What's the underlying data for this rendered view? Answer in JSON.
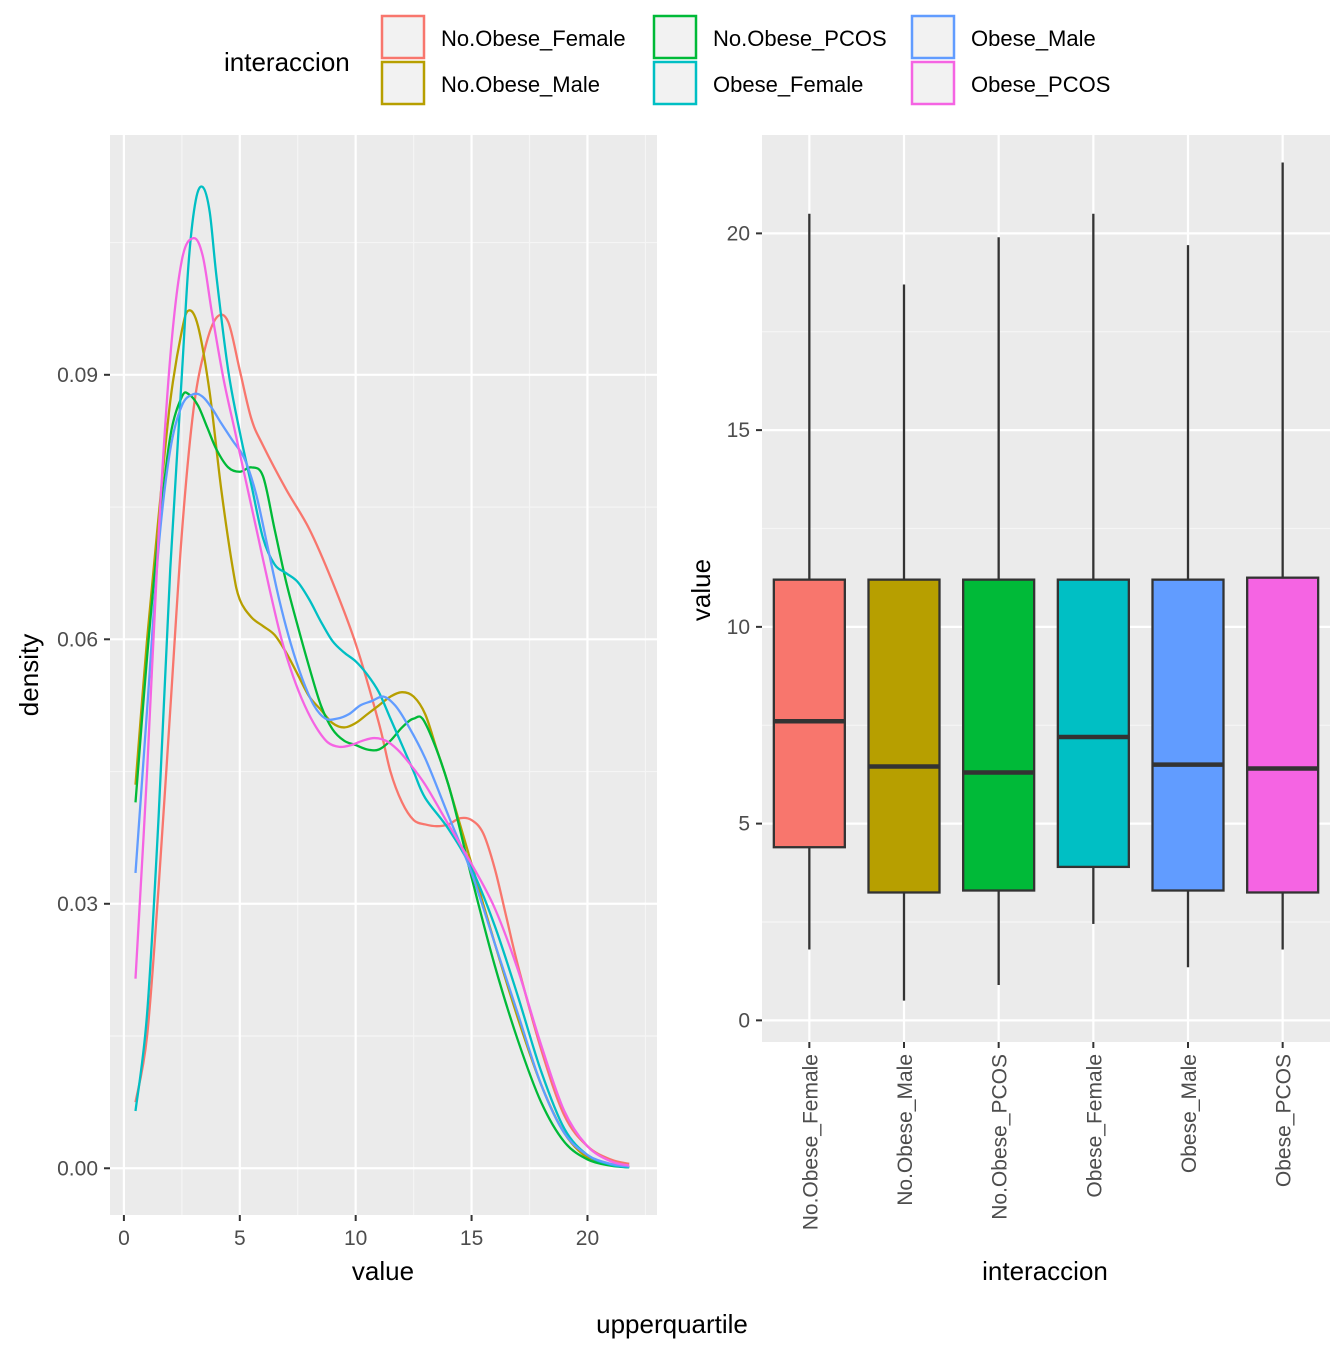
{
  "legend": {
    "title": "interaccion",
    "items": [
      {
        "label": "No.Obese_Female",
        "color": "#F8766D"
      },
      {
        "label": "No.Obese_Male",
        "color": "#B79F00"
      },
      {
        "label": "No.Obese_PCOS",
        "color": "#00BA38"
      },
      {
        "label": "Obese_Female",
        "color": "#00BFC4"
      },
      {
        "label": "Obese_Male",
        "color": "#619CFF"
      },
      {
        "label": "Obese_PCOS",
        "color": "#F564E3"
      }
    ]
  },
  "caption": "upperquartile",
  "chart_data": [
    {
      "type": "line",
      "subtype": "density",
      "xlabel": "value",
      "ylabel": "density",
      "xlim": [
        -0.6,
        23.0
      ],
      "ylim": [
        -0.0053,
        0.1172
      ],
      "xticks": [
        0,
        5,
        10,
        15,
        20
      ],
      "xtick_labels": [
        "0",
        "5",
        "10",
        "15",
        "20"
      ],
      "yticks": [
        0,
        0.03,
        0.06,
        0.09
      ],
      "ytick_labels": [
        "0.00",
        "0.03",
        "0.06",
        "0.09"
      ],
      "grid": true,
      "series": [
        {
          "name": "No.Obese_Female",
          "color": "#F8766D",
          "x": [
            0.5,
            1.0,
            1.5,
            2.0,
            2.5,
            3.0,
            3.5,
            4.0,
            4.5,
            5.0,
            5.5,
            6.0,
            7.0,
            8.0,
            9.0,
            10.0,
            11.0,
            11.5,
            12.0,
            12.5,
            13.0,
            13.5,
            14.0,
            14.5,
            15.0,
            15.5,
            16.0,
            16.5,
            17.0,
            18.0,
            19.0,
            20.0,
            21.0,
            21.8
          ],
          "y": [
            0.0075,
            0.015,
            0.032,
            0.052,
            0.072,
            0.086,
            0.093,
            0.0965,
            0.096,
            0.0905,
            0.085,
            0.082,
            0.077,
            0.0725,
            0.0665,
            0.0595,
            0.0505,
            0.045,
            0.0415,
            0.0395,
            0.039,
            0.0388,
            0.039,
            0.0397,
            0.0395,
            0.038,
            0.034,
            0.0285,
            0.023,
            0.0135,
            0.006,
            0.0025,
            0.001,
            0.0005
          ]
        },
        {
          "name": "No.Obese_Male",
          "color": "#B79F00",
          "x": [
            0.5,
            1.0,
            1.5,
            2.0,
            2.5,
            2.8,
            3.2,
            3.7,
            4.2,
            4.7,
            5.0,
            5.5,
            6.0,
            6.5,
            7.0,
            7.5,
            8.0,
            8.5,
            9.0,
            9.5,
            10.0,
            10.5,
            11.0,
            11.5,
            12.0,
            12.5,
            13.0,
            13.5,
            14.0,
            15.0,
            16.0,
            17.0,
            18.0,
            19.0,
            20.0,
            21.0,
            21.8
          ],
          "y": [
            0.0435,
            0.06,
            0.074,
            0.087,
            0.095,
            0.0973,
            0.0955,
            0.088,
            0.077,
            0.068,
            0.0645,
            0.0625,
            0.0615,
            0.0605,
            0.0585,
            0.056,
            0.0535,
            0.052,
            0.0505,
            0.05,
            0.0505,
            0.0515,
            0.0525,
            0.0535,
            0.054,
            0.0535,
            0.0515,
            0.0475,
            0.0435,
            0.0345,
            0.0255,
            0.017,
            0.0095,
            0.004,
            0.0012,
            0.0004,
            0.0001
          ]
        },
        {
          "name": "No.Obese_PCOS",
          "color": "#00BA38",
          "x": [
            0.5,
            1.0,
            1.5,
            2.0,
            2.5,
            2.8,
            3.2,
            3.6,
            4.0,
            4.5,
            5.0,
            5.5,
            6.0,
            6.5,
            7.0,
            7.5,
            8.0,
            8.5,
            9.0,
            9.5,
            10.0,
            10.5,
            11.0,
            11.5,
            12.0,
            12.5,
            13.0,
            14.0,
            15.0,
            16.0,
            17.0,
            18.0,
            19.0,
            20.0,
            21.0,
            21.8
          ],
          "y": [
            0.0415,
            0.058,
            0.072,
            0.083,
            0.0875,
            0.0878,
            0.0865,
            0.084,
            0.0815,
            0.0795,
            0.079,
            0.0795,
            0.0785,
            0.0725,
            0.0665,
            0.0615,
            0.0568,
            0.0525,
            0.0498,
            0.0485,
            0.048,
            0.0475,
            0.0475,
            0.0485,
            0.05,
            0.051,
            0.0505,
            0.0435,
            0.033,
            0.023,
            0.0145,
            0.0075,
            0.003,
            0.001,
            0.0003,
            0.0001
          ]
        },
        {
          "name": "Obese_Female",
          "color": "#00BFC4",
          "x": [
            0.5,
            1.0,
            1.5,
            2.0,
            2.5,
            2.8,
            3.1,
            3.4,
            3.7,
            4.0,
            4.5,
            5.0,
            5.5,
            6.0,
            6.5,
            7.0,
            7.5,
            8.0,
            8.5,
            9.0,
            9.5,
            10.0,
            10.5,
            11.0,
            11.5,
            12.0,
            12.5,
            13.0,
            14.0,
            15.0,
            16.0,
            17.0,
            18.0,
            19.0,
            20.0,
            21.0,
            21.8
          ],
          "y": [
            0.0065,
            0.0175,
            0.04,
            0.068,
            0.09,
            0.103,
            0.1098,
            0.1113,
            0.1085,
            0.101,
            0.0905,
            0.0835,
            0.0775,
            0.0715,
            0.0685,
            0.0675,
            0.0665,
            0.0645,
            0.062,
            0.0598,
            0.0585,
            0.0575,
            0.056,
            0.054,
            0.051,
            0.048,
            0.045,
            0.042,
            0.0385,
            0.034,
            0.0275,
            0.0195,
            0.011,
            0.0045,
            0.0015,
            0.0004,
            0.0001
          ]
        },
        {
          "name": "Obese_Male",
          "color": "#619CFF",
          "x": [
            0.5,
            1.0,
            1.5,
            2.0,
            2.5,
            3.0,
            3.4,
            3.8,
            4.2,
            4.7,
            5.2,
            5.7,
            6.2,
            6.7,
            7.2,
            7.7,
            8.2,
            8.7,
            9.2,
            9.7,
            10.2,
            10.7,
            11.2,
            11.7,
            12.2,
            13.0,
            14.0,
            15.0,
            16.0,
            17.0,
            18.0,
            19.0,
            20.0,
            21.0,
            21.8
          ],
          "y": [
            0.0335,
            0.052,
            0.0705,
            0.0815,
            0.0865,
            0.0878,
            0.0875,
            0.0862,
            0.0845,
            0.0825,
            0.0805,
            0.0765,
            0.0705,
            0.0645,
            0.0595,
            0.0555,
            0.0525,
            0.051,
            0.051,
            0.0515,
            0.0525,
            0.053,
            0.0535,
            0.0525,
            0.0505,
            0.0465,
            0.04,
            0.0335,
            0.0255,
            0.0175,
            0.0095,
            0.004,
            0.0015,
            0.0005,
            0.0002
          ]
        },
        {
          "name": "Obese_PCOS",
          "color": "#F564E3",
          "x": [
            0.5,
            1.0,
            1.5,
            2.0,
            2.5,
            3.0,
            3.4,
            3.8,
            4.3,
            4.8,
            5.3,
            5.8,
            6.3,
            6.8,
            7.3,
            7.8,
            8.3,
            8.8,
            9.3,
            9.8,
            10.3,
            10.8,
            11.3,
            11.8,
            12.3,
            13.0,
            14.0,
            15.0,
            16.0,
            17.0,
            18.0,
            19.0,
            20.0,
            21.0,
            21.8
          ],
          "y": [
            0.0215,
            0.045,
            0.072,
            0.092,
            0.103,
            0.1055,
            0.1035,
            0.097,
            0.0895,
            0.0835,
            0.0775,
            0.0715,
            0.0655,
            0.06,
            0.0558,
            0.0525,
            0.05,
            0.0483,
            0.0478,
            0.048,
            0.0485,
            0.0488,
            0.0485,
            0.0475,
            0.046,
            0.0435,
            0.039,
            0.0345,
            0.0295,
            0.0225,
            0.014,
            0.0065,
            0.0025,
            0.0008,
            0.0003
          ]
        }
      ]
    },
    {
      "type": "box",
      "xlabel": "interaccion",
      "ylabel": "value",
      "ylim": [
        -0.55,
        22.5
      ],
      "yticks": [
        0,
        5,
        10,
        15,
        20
      ],
      "ytick_labels": [
        "0",
        "5",
        "10",
        "15",
        "20"
      ],
      "grid": true,
      "categories": [
        "No.Obese_Female",
        "No.Obese_Male",
        "No.Obese_PCOS",
        "Obese_Female",
        "Obese_Male",
        "Obese_PCOS"
      ],
      "boxes": [
        {
          "name": "No.Obese_Female",
          "color": "#F8766D",
          "min": 1.8,
          "q1": 4.4,
          "median": 7.6,
          "q3": 11.2,
          "max": 20.5
        },
        {
          "name": "No.Obese_Male",
          "color": "#B79F00",
          "min": 0.5,
          "q1": 3.25,
          "median": 6.45,
          "q3": 11.2,
          "max": 18.7
        },
        {
          "name": "No.Obese_PCOS",
          "color": "#00BA38",
          "min": 0.9,
          "q1": 3.3,
          "median": 6.3,
          "q3": 11.2,
          "max": 19.9
        },
        {
          "name": "Obese_Female",
          "color": "#00BFC4",
          "min": 2.45,
          "q1": 3.9,
          "median": 7.2,
          "q3": 11.2,
          "max": 20.5
        },
        {
          "name": "Obese_Male",
          "color": "#619CFF",
          "min": 1.35,
          "q1": 3.3,
          "median": 6.5,
          "q3": 11.2,
          "max": 19.7
        },
        {
          "name": "Obese_PCOS",
          "color": "#F564E3",
          "min": 1.8,
          "q1": 3.25,
          "median": 6.4,
          "q3": 11.25,
          "max": 21.8
        }
      ]
    }
  ]
}
